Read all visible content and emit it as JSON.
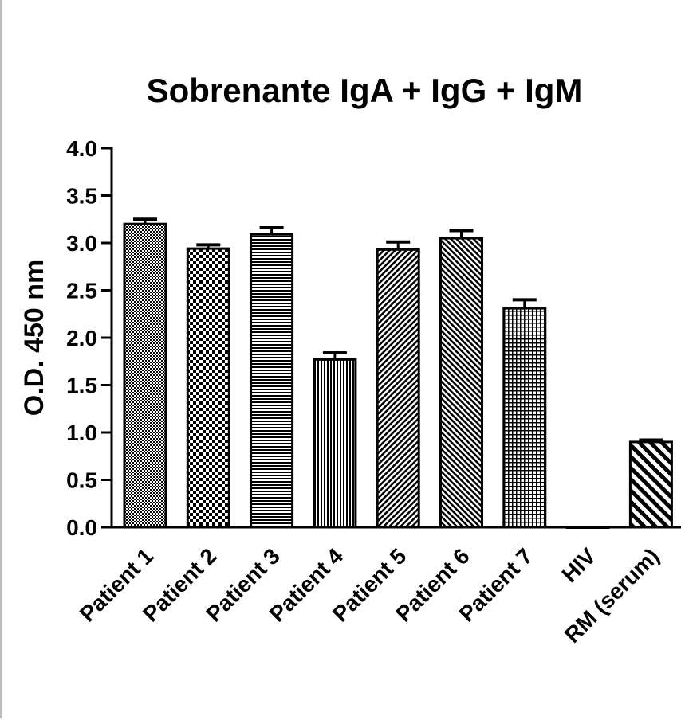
{
  "chart_data": {
    "type": "bar",
    "title": "Sobrenante IgA + IgG + IgM",
    "xlabel": "",
    "ylabel": "O.D. 450 nm",
    "ylim": [
      0,
      4.0
    ],
    "yticks": [
      "0.0",
      "0.5",
      "1.0",
      "1.5",
      "2.0",
      "2.5",
      "3.0",
      "3.5",
      "4.0"
    ],
    "categories": [
      "Patient 1",
      "Patient 2",
      "Patient 3",
      "Patient 4",
      "Patient 5",
      "Patient 6",
      "Patient 7",
      "HIV",
      "RM (serum)"
    ],
    "values": [
      3.2,
      2.94,
      3.09,
      1.77,
      2.93,
      3.05,
      2.31,
      0.0,
      0.9
    ],
    "errors": [
      0.05,
      0.04,
      0.07,
      0.07,
      0.08,
      0.08,
      0.09,
      0.0,
      0.02
    ],
    "patterns": [
      "fine-checker",
      "coarse-checker",
      "horizontal-lines",
      "vertical-lines",
      "diagonal-right",
      "diagonal-left",
      "grid",
      "none",
      "diagonal-left-wide"
    ],
    "grid": false,
    "legend": "none"
  }
}
